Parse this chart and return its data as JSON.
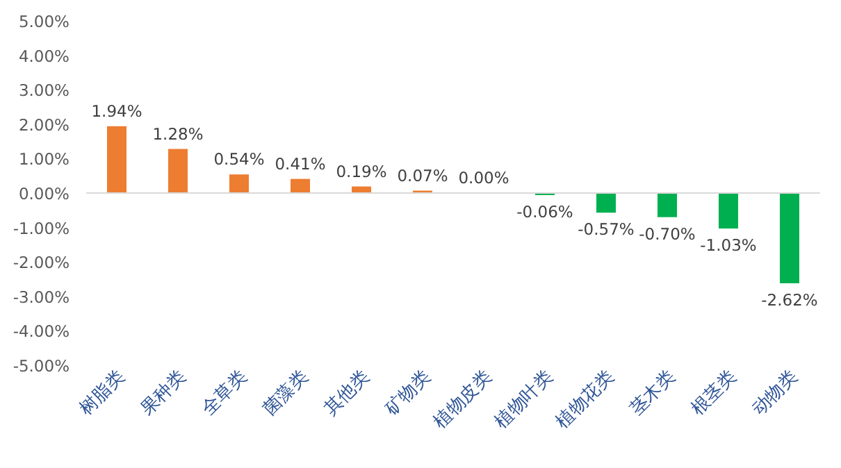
{
  "chart_data": {
    "type": "bar",
    "categories": [
      "树脂类",
      "果种类",
      "全草类",
      "菌藻类",
      "其他类",
      "矿物类",
      "植物皮类",
      "植物叶类",
      "植物花类",
      "茎木类",
      "根茎类",
      "动物类"
    ],
    "values": [
      1.94,
      1.28,
      0.54,
      0.41,
      0.19,
      0.07,
      0.0,
      -0.06,
      -0.57,
      -0.7,
      -1.03,
      -2.62
    ],
    "colors": [
      "#ed7d31",
      "#ed7d31",
      "#ed7d31",
      "#ed7d31",
      "#ed7d31",
      "#ed7d31",
      "#ed7d31",
      "#00b050",
      "#00b050",
      "#00b050",
      "#00b050",
      "#00b050"
    ],
    "value_labels": [
      "1.94%",
      "1.28%",
      "0.54%",
      "0.41%",
      "0.19%",
      "0.07%",
      "0.00%",
      "-0.06%",
      "-0.57%",
      "-0.70%",
      "-1.03%",
      "-2.62%"
    ],
    "ylim": [
      -5,
      5
    ],
    "yticks": [
      {
        "value": -5,
        "label": "-5.00%"
      },
      {
        "value": -4,
        "label": "-4.00%"
      },
      {
        "value": -3,
        "label": "-3.00%"
      },
      {
        "value": -2,
        "label": "-2.00%"
      },
      {
        "value": -1,
        "label": "-1.00%"
      },
      {
        "value": 0,
        "label": "0.00%"
      },
      {
        "value": 1,
        "label": "1.00%"
      },
      {
        "value": 2,
        "label": "2.00%"
      },
      {
        "value": 3,
        "label": "3.00%"
      },
      {
        "value": 4,
        "label": "4.00%"
      },
      {
        "value": 5,
        "label": "5.00%"
      }
    ]
  }
}
